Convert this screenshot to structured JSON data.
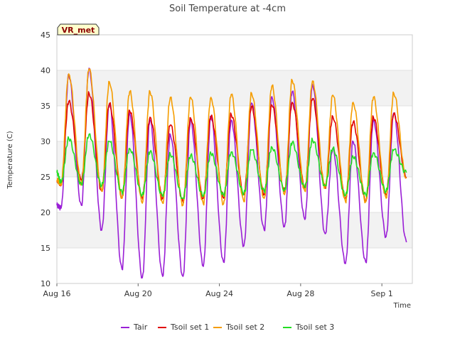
{
  "chart_data": {
    "type": "line",
    "title": "Soil Temperature at -4cm",
    "xlabel": "Time",
    "ylabel": "Temperature (C)",
    "badge": "VR_met",
    "ylim": [
      10,
      45
    ],
    "yticks": [
      10,
      15,
      20,
      25,
      30,
      35,
      40,
      45
    ],
    "xlim": [
      "2023-08-16",
      "2023-09-02T12:00"
    ],
    "xticks": [
      {
        "date": "2023-08-16",
        "label": "Aug 16"
      },
      {
        "date": "2023-08-20",
        "label": "Aug 20"
      },
      {
        "date": "2023-08-24",
        "label": "Aug 24"
      },
      {
        "date": "2023-08-28",
        "label": "Aug 28"
      },
      {
        "date": "2023-09-01",
        "label": "Sep 1"
      }
    ],
    "grid": "horizontal bands",
    "legend_position": "bottom",
    "x": [
      "2023-08-16T00:00",
      "2023-08-16T05:00",
      "2023-08-16T14:00",
      "2023-08-17T05:00",
      "2023-08-17T14:00",
      "2023-08-18T05:00",
      "2023-08-18T14:00",
      "2023-08-19T05:00",
      "2023-08-19T14:00",
      "2023-08-20T05:00",
      "2023-08-20T14:00",
      "2023-08-21T05:00",
      "2023-08-21T14:00",
      "2023-08-22T05:00",
      "2023-08-22T14:00",
      "2023-08-23T05:00",
      "2023-08-23T14:00",
      "2023-08-24T05:00",
      "2023-08-24T14:00",
      "2023-08-25T05:00",
      "2023-08-25T14:00",
      "2023-08-26T05:00",
      "2023-08-26T14:00",
      "2023-08-27T05:00",
      "2023-08-27T14:00",
      "2023-08-28T05:00",
      "2023-08-28T14:00",
      "2023-08-29T05:00",
      "2023-08-29T14:00",
      "2023-08-30T05:00",
      "2023-08-30T14:00",
      "2023-08-31T05:00",
      "2023-08-31T14:00",
      "2023-09-01T05:00",
      "2023-09-01T14:00",
      "2023-09-02T05:00",
      "2023-09-02T14:00"
    ],
    "series": [
      {
        "name": "Tair",
        "color": "#9a1fd6",
        "values": [
          21.0,
          20.6,
          39.3,
          21.0,
          40.3,
          17.5,
          35.2,
          12.0,
          34.0,
          10.8,
          33.0,
          11.0,
          31.0,
          11.0,
          33.0,
          12.4,
          33.5,
          13.0,
          33.0,
          15.3,
          35.4,
          17.5,
          36.3,
          18.0,
          37.0,
          19.0,
          38.0,
          17.0,
          29.0,
          12.8,
          30.0,
          13.0,
          33.0,
          16.6,
          34.0,
          15.8,
          null
        ]
      },
      {
        "name": "Tsoil set 1",
        "color": "#e00000",
        "values": [
          24.5,
          24.0,
          35.6,
          24.5,
          36.8,
          23.0,
          35.3,
          22.0,
          34.3,
          22.0,
          33.4,
          22.0,
          32.3,
          21.5,
          33.3,
          22.0,
          33.5,
          22.0,
          33.8,
          22.5,
          34.9,
          22.5,
          35.1,
          23.0,
          35.5,
          23.5,
          36.0,
          23.5,
          33.5,
          22.0,
          32.7,
          21.5,
          33.4,
          22.5,
          33.9,
          25.0,
          null
        ]
      },
      {
        "name": "Tsoil set 2",
        "color": "#f59d00",
        "values": [
          24.5,
          24.0,
          39.5,
          24.0,
          40.2,
          23.0,
          38.4,
          22.0,
          37.0,
          21.3,
          37.0,
          21.3,
          36.2,
          21.0,
          36.2,
          21.2,
          36.2,
          21.2,
          36.6,
          21.5,
          36.8,
          22.0,
          37.8,
          22.5,
          38.6,
          23.0,
          38.5,
          23.5,
          36.5,
          21.5,
          35.5,
          21.5,
          36.2,
          22.0,
          36.8,
          24.8,
          null
        ]
      },
      {
        "name": "Tsoil set 3",
        "color": "#22dd22",
        "values": [
          25.6,
          24.2,
          30.4,
          24.0,
          31.0,
          23.8,
          30.0,
          22.8,
          29.0,
          22.5,
          28.5,
          22.3,
          28.2,
          22.0,
          28.0,
          22.3,
          28.3,
          22.5,
          28.5,
          22.7,
          28.8,
          23.0,
          29.2,
          23.2,
          29.8,
          23.5,
          30.2,
          23.8,
          29.0,
          22.4,
          27.8,
          22.5,
          28.4,
          23.0,
          28.8,
          25.6,
          null
        ]
      }
    ]
  }
}
